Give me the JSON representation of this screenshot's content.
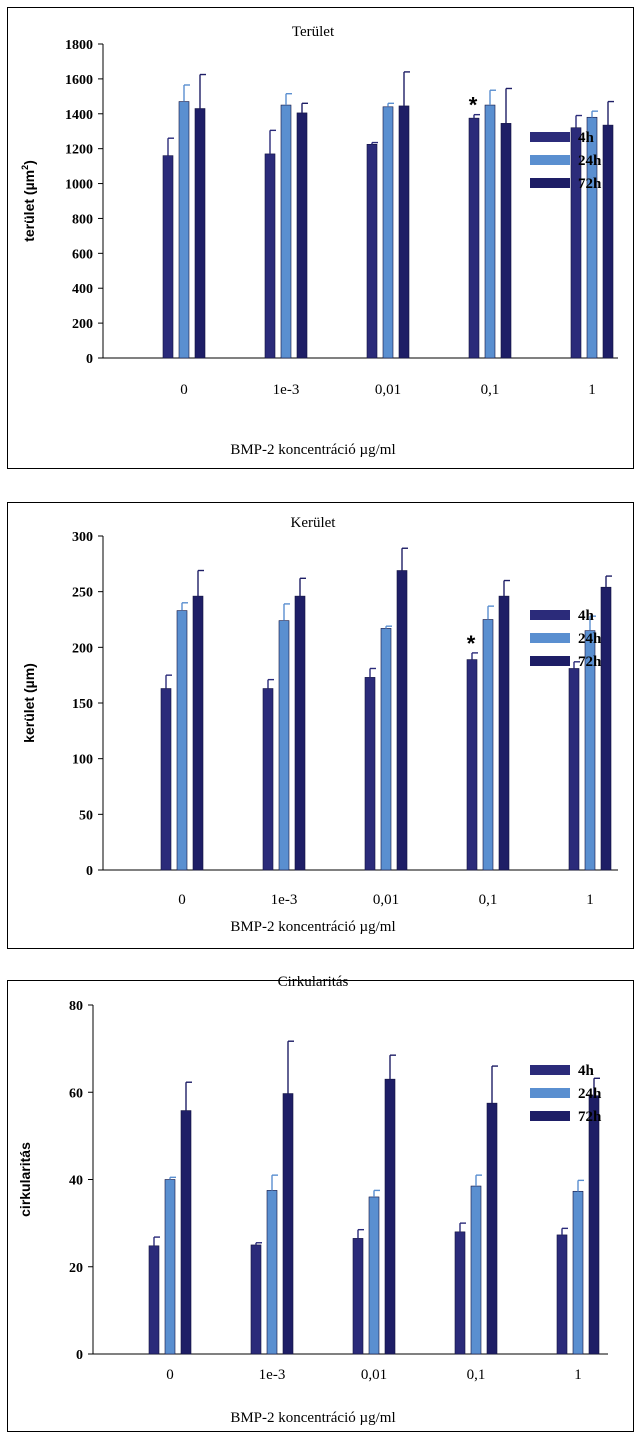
{
  "colors": {
    "h4": "#2b2b7a",
    "h24": "#5a8fd0",
    "h72": "#1e1e66",
    "axis": "#000000"
  },
  "chart_data": [
    {
      "type": "bar",
      "title": "Terület",
      "ylabel": "terület (µm",
      "ylabel_sup": "2",
      "ylabel_close": ")",
      "xlabel": "BMP-2 koncentráció µg/ml",
      "categories": [
        "0",
        "1e-3",
        "0,01",
        "0,1",
        "1"
      ],
      "ylim": [
        0,
        1800
      ],
      "yticks": [
        0,
        200,
        400,
        600,
        800,
        1000,
        1200,
        1400,
        1600,
        1800
      ],
      "series": [
        {
          "name": "4h",
          "values": [
            1160,
            1170,
            1225,
            1375,
            1320
          ],
          "errors": [
            100,
            135,
            10,
            20,
            70
          ]
        },
        {
          "name": "24h",
          "values": [
            1470,
            1450,
            1440,
            1450,
            1380
          ],
          "errors": [
            95,
            65,
            20,
            85,
            35
          ]
        },
        {
          "name": "72h",
          "values": [
            1430,
            1405,
            1445,
            1345,
            1335
          ],
          "errors": [
            195,
            55,
            195,
            200,
            135
          ]
        }
      ],
      "annotations": [
        {
          "text": "*",
          "category": "0,1",
          "series": "4h"
        }
      ],
      "legend": "right"
    },
    {
      "type": "bar",
      "title": "Kerület",
      "ylabel": "kerület (µm)",
      "xlabel": "BMP-2 koncentráció µg/ml",
      "categories": [
        "0",
        "1e-3",
        "0,01",
        "0,1",
        "1"
      ],
      "ylim": [
        0,
        300
      ],
      "yticks": [
        0,
        50,
        100,
        150,
        200,
        250,
        300
      ],
      "series": [
        {
          "name": "4h",
          "values": [
            163,
            163,
            173,
            189,
            181
          ],
          "errors": [
            12,
            8,
            8,
            6,
            6
          ]
        },
        {
          "name": "24h",
          "values": [
            233,
            224,
            217,
            225,
            215
          ],
          "errors": [
            7,
            15,
            2,
            12,
            13
          ]
        },
        {
          "name": "72h",
          "values": [
            246,
            246,
            269,
            246,
            254
          ],
          "errors": [
            23,
            16,
            20,
            14,
            10
          ]
        }
      ],
      "annotations": [
        {
          "text": "*",
          "category": "0,1",
          "series": "4h"
        }
      ],
      "legend": "right"
    },
    {
      "type": "bar",
      "title": "Cirkularitás",
      "ylabel": "cirkularitás",
      "xlabel": "BMP-2 koncentráció µg/ml",
      "categories": [
        "0",
        "1e-3",
        "0,01",
        "0,1",
        "1"
      ],
      "ylim": [
        0,
        80
      ],
      "yticks": [
        0,
        20,
        40,
        60,
        80
      ],
      "series": [
        {
          "name": "4h",
          "values": [
            24.8,
            25.0,
            26.5,
            28.0,
            27.3
          ],
          "errors": [
            2.0,
            0.5,
            2.0,
            2.0,
            1.5
          ]
        },
        {
          "name": "24h",
          "values": [
            40.0,
            37.5,
            36.0,
            38.5,
            37.3
          ],
          "errors": [
            0.5,
            3.5,
            1.5,
            2.5,
            2.5
          ]
        },
        {
          "name": "72h",
          "values": [
            55.8,
            59.7,
            63.0,
            57.5,
            59.2
          ],
          "errors": [
            6.5,
            12.0,
            5.5,
            8.5,
            4.0
          ]
        }
      ],
      "legend": "right"
    }
  ]
}
